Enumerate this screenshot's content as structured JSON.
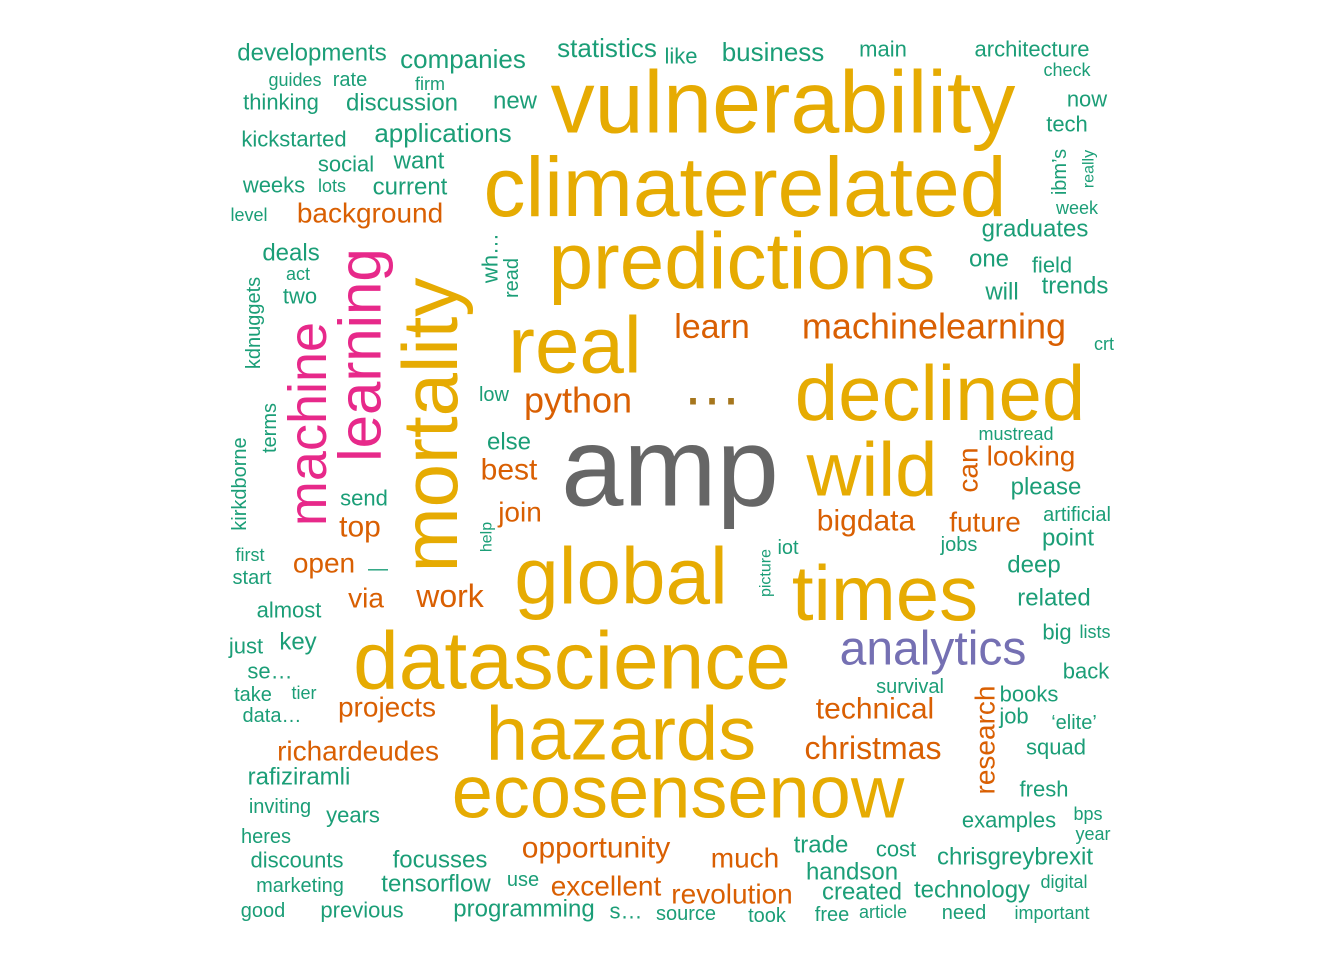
{
  "palette": {
    "teal": "#1b9e77",
    "orange": "#d95f02",
    "purple": "#7570b3",
    "magenta": "#e7298a",
    "gold": "#e6ab02",
    "olive": "#a6761d",
    "gray": "#666666"
  },
  "words": [
    {
      "text": "amp",
      "color": "gray"
    },
    {
      "text": "vulnerability",
      "color": "gold"
    },
    {
      "text": "climaterelated",
      "color": "gold"
    },
    {
      "text": "predictions",
      "color": "gold"
    },
    {
      "text": "real",
      "color": "gold"
    },
    {
      "text": "declined",
      "color": "gold"
    },
    {
      "text": "wild",
      "color": "gold"
    },
    {
      "text": "mortality",
      "color": "gold"
    },
    {
      "text": "global",
      "color": "gold"
    },
    {
      "text": "times",
      "color": "gold"
    },
    {
      "text": "datascience",
      "color": "gold"
    },
    {
      "text": "hazards",
      "color": "gold"
    },
    {
      "text": "ecosensenow",
      "color": "gold"
    },
    {
      "text": "…",
      "color": "olive"
    },
    {
      "text": "learning",
      "color": "magenta"
    },
    {
      "text": "machine",
      "color": "magenta"
    },
    {
      "text": "analytics",
      "color": "purple"
    },
    {
      "text": "machinelearning",
      "color": "orange"
    },
    {
      "text": "learn",
      "color": "orange"
    },
    {
      "text": "python",
      "color": "orange"
    },
    {
      "text": "background",
      "color": "orange"
    },
    {
      "text": "best",
      "color": "orange"
    },
    {
      "text": "top",
      "color": "orange"
    },
    {
      "text": "join",
      "color": "orange"
    },
    {
      "text": "bigdata",
      "color": "orange"
    },
    {
      "text": "future",
      "color": "orange"
    },
    {
      "text": "can",
      "color": "orange"
    },
    {
      "text": "looking",
      "color": "orange"
    },
    {
      "text": "open",
      "color": "orange"
    },
    {
      "text": "via",
      "color": "orange"
    },
    {
      "text": "work",
      "color": "orange"
    },
    {
      "text": "projects",
      "color": "orange"
    },
    {
      "text": "richardeudes",
      "color": "orange"
    },
    {
      "text": "technical",
      "color": "orange"
    },
    {
      "text": "christmas",
      "color": "orange"
    },
    {
      "text": "research",
      "color": "orange"
    },
    {
      "text": "opportunity",
      "color": "orange"
    },
    {
      "text": "much",
      "color": "orange"
    },
    {
      "text": "excellent",
      "color": "orange"
    },
    {
      "text": "revolution",
      "color": "orange"
    },
    {
      "text": "developments",
      "color": "teal"
    },
    {
      "text": "companies",
      "color": "teal"
    },
    {
      "text": "statistics",
      "color": "teal"
    },
    {
      "text": "like",
      "color": "teal"
    },
    {
      "text": "business",
      "color": "teal"
    },
    {
      "text": "main",
      "color": "teal"
    },
    {
      "text": "architecture",
      "color": "teal"
    },
    {
      "text": "guides",
      "color": "teal"
    },
    {
      "text": "rate",
      "color": "teal"
    },
    {
      "text": "firm",
      "color": "teal"
    },
    {
      "text": "check",
      "color": "teal"
    },
    {
      "text": "thinking",
      "color": "teal"
    },
    {
      "text": "discussion",
      "color": "teal"
    },
    {
      "text": "new",
      "color": "teal"
    },
    {
      "text": "now",
      "color": "teal"
    },
    {
      "text": "applications",
      "color": "teal"
    },
    {
      "text": "tech",
      "color": "teal"
    },
    {
      "text": "kickstarted",
      "color": "teal"
    },
    {
      "text": "social",
      "color": "teal"
    },
    {
      "text": "want",
      "color": "teal"
    },
    {
      "text": "ibm’s",
      "color": "teal"
    },
    {
      "text": "really",
      "color": "teal"
    },
    {
      "text": "weeks",
      "color": "teal"
    },
    {
      "text": "lots",
      "color": "teal"
    },
    {
      "text": "current",
      "color": "teal"
    },
    {
      "text": "week",
      "color": "teal"
    },
    {
      "text": "level",
      "color": "teal"
    },
    {
      "text": "graduates",
      "color": "teal"
    },
    {
      "text": "deals",
      "color": "teal"
    },
    {
      "text": "one",
      "color": "teal"
    },
    {
      "text": "act",
      "color": "teal"
    },
    {
      "text": "field",
      "color": "teal"
    },
    {
      "text": "wh…",
      "color": "teal"
    },
    {
      "text": "read",
      "color": "teal"
    },
    {
      "text": "two",
      "color": "teal"
    },
    {
      "text": "will",
      "color": "teal"
    },
    {
      "text": "trends",
      "color": "teal"
    },
    {
      "text": "kdnuggets",
      "color": "teal"
    },
    {
      "text": "crt",
      "color": "teal"
    },
    {
      "text": "low",
      "color": "teal"
    },
    {
      "text": "terms",
      "color": "teal"
    },
    {
      "text": "mustread",
      "color": "teal"
    },
    {
      "text": "else",
      "color": "teal"
    },
    {
      "text": "kirkdborne",
      "color": "teal"
    },
    {
      "text": "please",
      "color": "teal"
    },
    {
      "text": "send",
      "color": "teal"
    },
    {
      "text": "artificial",
      "color": "teal"
    },
    {
      "text": "help",
      "color": "teal"
    },
    {
      "text": "point",
      "color": "teal"
    },
    {
      "text": "first",
      "color": "teal"
    },
    {
      "text": "jobs",
      "color": "teal"
    },
    {
      "text": "iot",
      "color": "teal"
    },
    {
      "text": "—",
      "color": "teal"
    },
    {
      "text": "picture",
      "color": "teal"
    },
    {
      "text": "deep",
      "color": "teal"
    },
    {
      "text": "start",
      "color": "teal"
    },
    {
      "text": "related",
      "color": "teal"
    },
    {
      "text": "almost",
      "color": "teal"
    },
    {
      "text": "big",
      "color": "teal"
    },
    {
      "text": "lists",
      "color": "teal"
    },
    {
      "text": "just",
      "color": "teal"
    },
    {
      "text": "key",
      "color": "teal"
    },
    {
      "text": "se…",
      "color": "teal"
    },
    {
      "text": "back",
      "color": "teal"
    },
    {
      "text": "take",
      "color": "teal"
    },
    {
      "text": "tier",
      "color": "teal"
    },
    {
      "text": "survival",
      "color": "teal"
    },
    {
      "text": "books",
      "color": "teal"
    },
    {
      "text": "data…",
      "color": "teal"
    },
    {
      "text": "job",
      "color": "teal"
    },
    {
      "text": "‘elite’",
      "color": "teal"
    },
    {
      "text": "squad",
      "color": "teal"
    },
    {
      "text": "rafiziramli",
      "color": "teal"
    },
    {
      "text": "fresh",
      "color": "teal"
    },
    {
      "text": "inviting",
      "color": "teal"
    },
    {
      "text": "years",
      "color": "teal"
    },
    {
      "text": "bps",
      "color": "teal"
    },
    {
      "text": "examples",
      "color": "teal"
    },
    {
      "text": "year",
      "color": "teal"
    },
    {
      "text": "heres",
      "color": "teal"
    },
    {
      "text": "trade",
      "color": "teal"
    },
    {
      "text": "cost",
      "color": "teal"
    },
    {
      "text": "discounts",
      "color": "teal"
    },
    {
      "text": "focusses",
      "color": "teal"
    },
    {
      "text": "handson",
      "color": "teal"
    },
    {
      "text": "chrisgreybrexit",
      "color": "teal"
    },
    {
      "text": "marketing",
      "color": "teal"
    },
    {
      "text": "tensorflow",
      "color": "teal"
    },
    {
      "text": "use",
      "color": "teal"
    },
    {
      "text": "created",
      "color": "teal"
    },
    {
      "text": "technology",
      "color": "teal"
    },
    {
      "text": "digital",
      "color": "teal"
    },
    {
      "text": "good",
      "color": "teal"
    },
    {
      "text": "previous",
      "color": "teal"
    },
    {
      "text": "programming",
      "color": "teal"
    },
    {
      "text": "s…",
      "color": "teal"
    },
    {
      "text": "source",
      "color": "teal"
    },
    {
      "text": "took",
      "color": "teal"
    },
    {
      "text": "free",
      "color": "teal"
    },
    {
      "text": "article",
      "color": "teal"
    },
    {
      "text": "need",
      "color": "teal"
    },
    {
      "text": "important",
      "color": "teal"
    }
  ]
}
